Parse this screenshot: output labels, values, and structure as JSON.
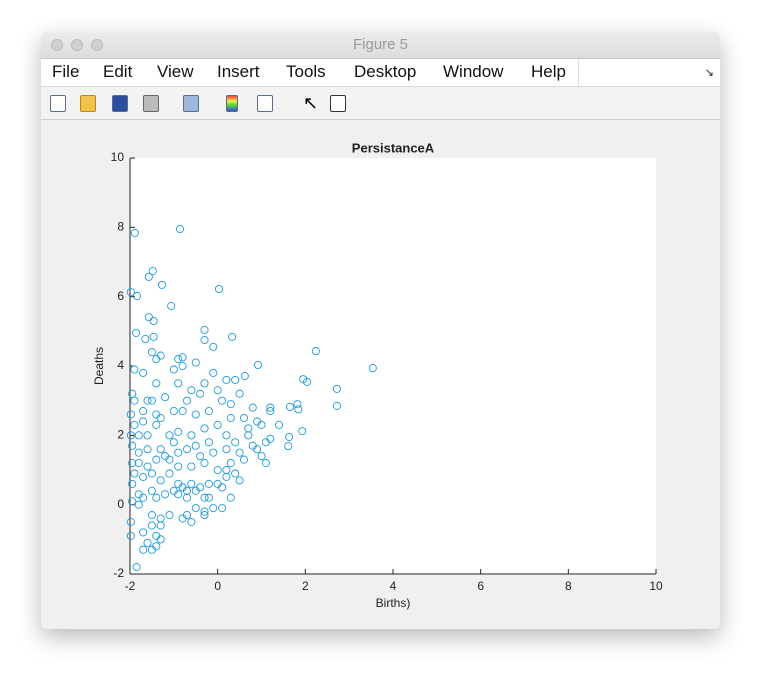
{
  "window": {
    "title": "Figure 5"
  },
  "menu": [
    "File",
    "Edit",
    "View",
    "Insert",
    "Tools",
    "Desktop",
    "Window",
    "Help"
  ],
  "chart_data": {
    "type": "scatter",
    "title": "PersistanceA",
    "x_label": "Births)",
    "y_label": "Deaths",
    "color": "#1f9bd7",
    "grid": false,
    "xlim": [
      -2,
      10
    ],
    "ylim": [
      -2,
      10
    ],
    "xticks": [
      -2,
      0,
      2,
      4,
      6,
      8,
      10
    ],
    "yticks": [
      -2,
      0,
      2,
      4,
      6,
      8,
      10
    ],
    "x": [
      -1.89,
      -0.86,
      -1.98,
      -1.84,
      -1.48,
      -1.57,
      -1.27,
      0.03,
      -1.06,
      -1.57,
      -1.46,
      -1.86,
      -1.65,
      -1.46,
      -0.3,
      -0.3,
      0.33,
      -0.1,
      2.24,
      3.54,
      2.72,
      2.72,
      1.95,
      2.04,
      0.92,
      0.62,
      1.93,
      1.63,
      1.61,
      1.82,
      1.84,
      1.65,
      -1.5,
      -1.3,
      -1.4,
      -0.9,
      -0.8,
      -0.8,
      -0.5,
      -1.0,
      -1.9,
      -1.7,
      -0.1,
      0.2,
      0.4,
      -0.3,
      -0.9,
      -1.4,
      -1.95,
      -1.9,
      -1.6,
      -1.5,
      -1.2,
      -0.7,
      -0.4,
      0.0,
      0.1,
      0.5,
      0.8,
      1.2,
      1.2,
      -1.98,
      -1.7,
      -1.4,
      -1.3,
      -1.0,
      -0.5,
      -0.2,
      0.3,
      0.6,
      1.0,
      1.4,
      -1.9,
      -1.8,
      -1.98,
      -1.6,
      -1.4,
      -1.1,
      -0.9,
      -0.6,
      -0.3,
      0.0,
      0.2,
      0.4,
      0.7,
      0.9,
      1.1,
      1.2,
      1.0,
      1.1,
      -1.95,
      -1.8,
      -1.6,
      -1.3,
      -1.2,
      -0.9,
      -0.7,
      -0.4,
      -0.1,
      0.2,
      0.5,
      0.3,
      0.2,
      -1.95,
      -1.8,
      -1.6,
      -1.4,
      -1.1,
      -0.9,
      -0.6,
      -0.3,
      0.0,
      0.2,
      0.5,
      -1.9,
      -1.7,
      -1.5,
      -1.3,
      -1.1,
      -0.9,
      -0.8,
      -0.7,
      -0.6,
      -0.4,
      -0.2,
      0.0,
      0.1,
      0.3,
      -1.95,
      -1.8,
      -1.7,
      -1.5,
      -1.4,
      -1.2,
      -1.0,
      -0.9,
      -0.7,
      -0.5,
      -0.3,
      0.1,
      -0.1,
      -0.3,
      -0.5,
      -0.7,
      -0.8,
      -1.1,
      -1.3,
      -1.5,
      -1.8,
      -1.95,
      -1.98,
      -1.5,
      -1.3,
      -1.7,
      -1.4,
      -1.3,
      -1.6,
      -1.98,
      -1.7,
      -1.4,
      -1.5,
      -1.85,
      -0.3,
      -0.6,
      -0.2,
      0.4,
      0.6,
      0.8,
      0.9,
      0.7,
      -0.2,
      -0.5,
      -1.0,
      -1.7,
      -0.8,
      -0.6,
      0.3
    ],
    "values": [
      7.84,
      7.95,
      6.13,
      6.02,
      6.74,
      6.57,
      6.34,
      6.22,
      5.73,
      5.41,
      5.3,
      4.95,
      4.78,
      4.84,
      5.04,
      4.75,
      4.84,
      4.55,
      4.43,
      3.94,
      3.34,
      2.85,
      3.62,
      3.54,
      4.03,
      3.71,
      2.12,
      1.95,
      1.69,
      2.9,
      2.75,
      2.82,
      4.4,
      4.3,
      4.2,
      4.2,
      4.25,
      4.0,
      4.1,
      3.9,
      3.9,
      3.8,
      3.8,
      3.6,
      3.6,
      3.5,
      3.5,
      3.5,
      3.2,
      3.0,
      3.0,
      3.0,
      3.1,
      3.0,
      3.2,
      3.3,
      3.0,
      3.2,
      2.8,
      2.8,
      2.7,
      2.6,
      2.7,
      2.6,
      2.5,
      2.7,
      2.6,
      2.7,
      2.9,
      2.5,
      2.3,
      2.3,
      2.3,
      2.0,
      2.0,
      2.0,
      2.3,
      2.0,
      2.1,
      2.0,
      2.2,
      2.3,
      2.0,
      1.8,
      2.0,
      1.6,
      1.8,
      1.9,
      1.4,
      1.2,
      1.7,
      1.5,
      1.6,
      1.6,
      1.4,
      1.5,
      1.6,
      1.4,
      1.5,
      1.6,
      1.5,
      1.2,
      1.0,
      1.2,
      1.2,
      1.1,
      1.3,
      1.3,
      1.1,
      1.1,
      1.2,
      1.0,
      0.8,
      0.7,
      0.9,
      0.8,
      0.9,
      0.7,
      0.9,
      0.6,
      0.5,
      0.4,
      0.6,
      0.5,
      0.6,
      0.6,
      0.5,
      0.2,
      0.6,
      0.3,
      0.2,
      0.4,
      0.2,
      0.3,
      0.4,
      0.3,
      0.2,
      0.4,
      0.2,
      -0.1,
      -0.1,
      -0.2,
      -0.1,
      -0.3,
      -0.4,
      -0.3,
      -0.4,
      -0.3,
      0.0,
      0.1,
      -0.5,
      -0.6,
      -0.6,
      -0.8,
      -0.9,
      -1.0,
      -1.1,
      -0.9,
      -1.3,
      -1.2,
      -1.3,
      -1.8,
      -0.3,
      -0.5,
      0.2,
      0.9,
      1.3,
      1.7,
      2.4,
      2.2,
      1.8,
      1.7,
      1.8,
      2.4,
      2.7,
      3.3,
      2.5
    ]
  }
}
